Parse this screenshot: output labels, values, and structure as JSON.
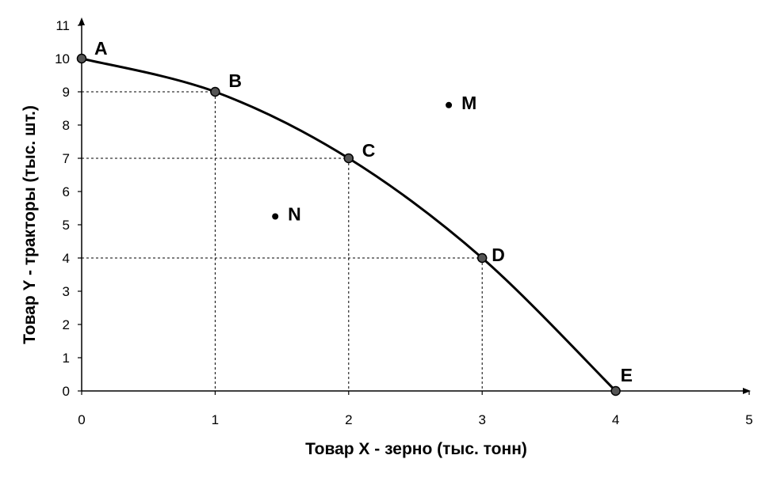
{
  "chart_data": {
    "type": "line",
    "title": "",
    "xlabel": "Товар X - зерно (тыс. тонн)",
    "ylabel": "Товар Y - тракторы (тыс. шт.)",
    "xlim": [
      0,
      5
    ],
    "ylim": [
      0,
      11
    ],
    "xticks": [
      "0",
      "1",
      "2",
      "3",
      "4",
      "5"
    ],
    "yticks": [
      "0",
      "1",
      "2",
      "3",
      "4",
      "5",
      "6",
      "7",
      "8",
      "9",
      "10",
      "11"
    ],
    "grid": false,
    "series": [
      {
        "x": [
          0,
          1,
          2,
          3,
          4
        ],
        "y": [
          10,
          9,
          7,
          4,
          0
        ]
      }
    ],
    "curve_points": [
      {
        "label": "A",
        "x": 0,
        "y": 10
      },
      {
        "label": "B",
        "x": 1,
        "y": 9
      },
      {
        "label": "C",
        "x": 2,
        "y": 7
      },
      {
        "label": "D",
        "x": 3,
        "y": 4
      },
      {
        "label": "E",
        "x": 4,
        "y": 0
      }
    ],
    "extra_points": [
      {
        "label": "M",
        "x": 2.75,
        "y": 8.6
      },
      {
        "label": "N",
        "x": 1.45,
        "y": 5.25
      }
    ],
    "guide_lines": [
      {
        "x": 1,
        "y": 9
      },
      {
        "x": 2,
        "y": 7
      },
      {
        "x": 3,
        "y": 4
      }
    ]
  }
}
